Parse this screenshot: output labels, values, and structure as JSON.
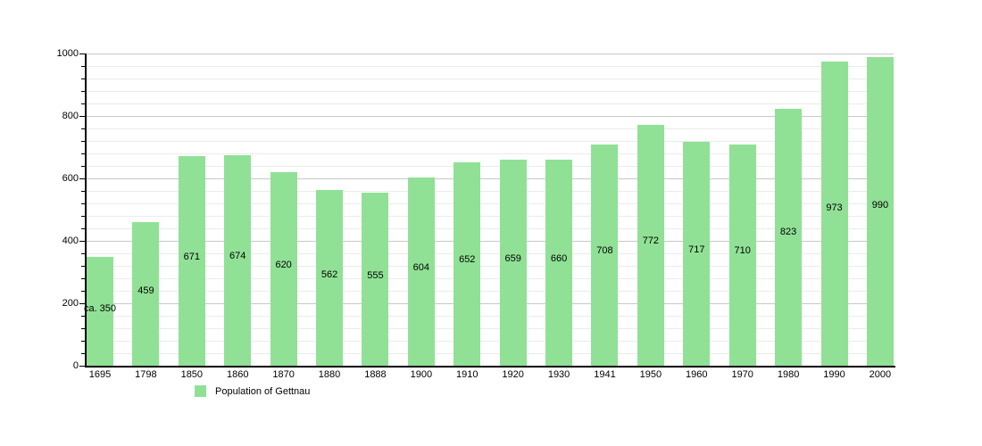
{
  "chart_data": {
    "type": "bar",
    "title": "",
    "categories": [
      "1695",
      "1798",
      "1850",
      "1860",
      "1870",
      "1880",
      "1888",
      "1900",
      "1910",
      "1920",
      "1930",
      "1941",
      "1950",
      "1960",
      "1970",
      "1980",
      "1990",
      "2000"
    ],
    "values": [
      350,
      459,
      671,
      674,
      620,
      562,
      555,
      604,
      652,
      659,
      660,
      708,
      772,
      717,
      710,
      823,
      973,
      990
    ],
    "bar_labels": [
      "ca. 350",
      "459",
      "671",
      "674",
      "620",
      "562",
      "555",
      "604",
      "652",
      "659",
      "660",
      "708",
      "772",
      "717",
      "710",
      "823",
      "973",
      "990"
    ],
    "xlabel": "",
    "ylabel": "",
    "ylim": [
      0,
      1000
    ],
    "y_major_ticks": [
      0,
      200,
      400,
      600,
      800,
      1000
    ],
    "y_minor_step": 40,
    "grid": true,
    "bar_color": "#90e195",
    "legend_position": "bottom-left",
    "legend": {
      "label": "Population of Gettnau"
    }
  }
}
